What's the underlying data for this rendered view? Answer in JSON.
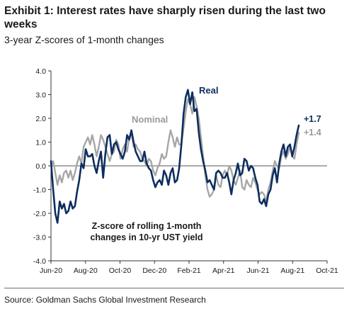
{
  "header": {
    "title": "Exhibit 1: Interest rates have sharply risen during the last two weeks",
    "subtitle": "3-year Z-scores of 1-month changes"
  },
  "footer": {
    "source": "Source: Goldman Sachs Global Investment Research"
  },
  "annotation": {
    "line1": "Z-score of rolling 1-month",
    "line2": "changes in 10-yr UST yield"
  },
  "chart_data": {
    "type": "line",
    "ylim": [
      -4.0,
      4.0
    ],
    "yticks": [
      "4.0",
      "3.0",
      "2.0",
      "1.0",
      "0.0",
      "-1.0",
      "-2.0",
      "-3.0",
      "-4.0"
    ],
    "xticks": [
      "Jun-20",
      "Aug-20",
      "Oct-20",
      "Dec-20",
      "Feb-21",
      "Apr-21",
      "Jun-21",
      "Aug-21",
      "Oct-21"
    ],
    "grid": false,
    "zero_line": true,
    "series": [
      {
        "name": "Real",
        "color": "#0d2d5e",
        "end_label": "+1.7",
        "values": [
          0.2,
          -1.0,
          -2.0,
          -2.4,
          -1.5,
          -1.8,
          -1.6,
          -2.0,
          -1.9,
          -1.5,
          -1.8,
          -1.7,
          -1.1,
          -0.6,
          0.1,
          -0.1,
          0.7,
          0.4,
          0.4,
          0.5,
          0.0,
          -0.3,
          0.2,
          0.6,
          -0.5,
          0.5,
          1.2,
          1.3,
          0.5,
          0.9,
          1.0,
          0.7,
          0.5,
          0.3,
          0.6,
          1.3,
          1.1,
          1.5,
          1.0,
          0.6,
          0.4,
          0.2,
          0.2,
          0.6,
          0.1,
          -0.1,
          -0.2,
          -0.6,
          -0.9,
          -0.7,
          -0.6,
          -0.8,
          -0.2,
          -0.4,
          -0.8,
          -0.3,
          -0.1,
          -0.7,
          -0.6,
          -0.1,
          0.9,
          2.2,
          2.9,
          3.2,
          2.6,
          3.1,
          2.3,
          2.4,
          1.4,
          0.7,
          0.2,
          -0.2,
          -0.7,
          -0.6,
          -0.8,
          -1.0,
          -0.3,
          -0.2,
          -0.3,
          -0.5,
          -0.5,
          -0.3,
          -0.7,
          -1.2,
          -0.6,
          -0.3,
          0.1,
          -0.4,
          -0.3,
          0.3,
          0.2,
          -0.2,
          0.0,
          -0.1,
          -0.5,
          -0.8,
          -1.5,
          -1.6,
          -1.4,
          -1.7,
          -1.2,
          -1.0,
          -0.4,
          -0.1,
          -0.7,
          0.1,
          0.6,
          0.9,
          0.4,
          0.8,
          0.9,
          0.4,
          0.8,
          1.3,
          1.7
        ]
      },
      {
        "name": "Nominal",
        "color": "#a6a6a6",
        "end_label": "+1.4",
        "values": [
          0.0,
          0.2,
          -0.3,
          -0.8,
          -0.4,
          -0.7,
          -0.3,
          -0.2,
          -0.5,
          -0.2,
          -0.6,
          -0.3,
          0.1,
          0.4,
          0.1,
          0.8,
          1.0,
          1.2,
          0.9,
          1.3,
          0.9,
          0.4,
          0.8,
          1.3,
          1.1,
          0.8,
          0.5,
          0.2,
          0.5,
          0.6,
          1.1,
          0.9,
          0.3,
          0.7,
          0.9,
          0.6,
          1.2,
          1.4,
          0.8,
          0.9,
          0.7,
          0.6,
          0.3,
          0.2,
          0.0,
          0.3,
          0.2,
          -0.2,
          -0.4,
          -0.1,
          0.1,
          0.5,
          0.3,
          0.4,
          1.0,
          1.5,
          1.2,
          0.8,
          1.2,
          0.9,
          0.9,
          1.6,
          2.3,
          2.8,
          2.6,
          2.2,
          2.9,
          2.5,
          2.0,
          1.2,
          0.4,
          -0.4,
          -1.0,
          -1.3,
          -1.2,
          -1.0,
          -0.4,
          -0.8,
          -0.9,
          -0.4,
          -0.2,
          -0.4,
          0.0,
          -0.2,
          -0.6,
          -0.8,
          -0.5,
          -0.2,
          -0.9,
          -1.0,
          -0.6,
          -0.8,
          -0.9,
          -0.5,
          -0.7,
          -1.0,
          -1.2,
          -1.1,
          -1.2,
          -1.5,
          -1.0,
          -0.7,
          -0.2,
          0.2,
          0.0,
          -0.1,
          0.4,
          0.6,
          0.3,
          0.5,
          0.8,
          0.4,
          0.3,
          0.9,
          1.4
        ]
      }
    ]
  }
}
